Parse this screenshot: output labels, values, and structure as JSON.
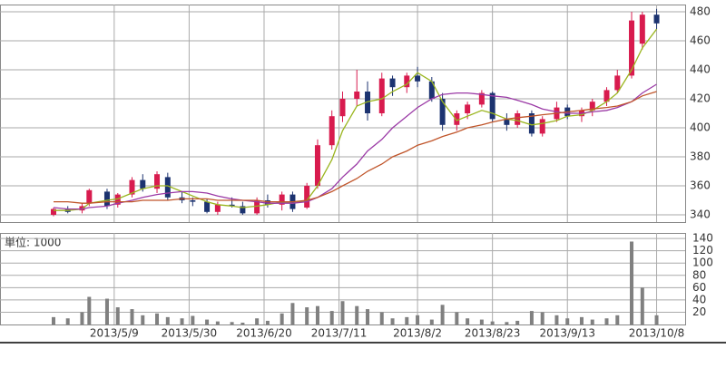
{
  "chart_data": {
    "type": "candlestick",
    "x": [
      "2013/4/22",
      "2013/4/26",
      "2013/4/30",
      "2013/5/2",
      "2013/5/7",
      "2013/5/10",
      "2013/5/14",
      "2013/5/17",
      "2013/5/21",
      "2013/5/24",
      "2013/5/28",
      "2013/5/31",
      "2013/6/4",
      "2013/6/7",
      "2013/6/11",
      "2013/6/14",
      "2013/6/18",
      "2013/6/21",
      "2013/6/25",
      "2013/6/28",
      "2013/7/2",
      "2013/7/5",
      "2013/7/9",
      "2013/7/12",
      "2013/7/16",
      "2013/7/19",
      "2013/7/23",
      "2013/7/26",
      "2013/7/30",
      "2013/8/2",
      "2013/8/6",
      "2013/8/9",
      "2013/8/13",
      "2013/8/16",
      "2013/8/20",
      "2013/8/23",
      "2013/8/27",
      "2013/8/30",
      "2013/9/3",
      "2013/9/6",
      "2013/9/10",
      "2013/9/13",
      "2013/9/17",
      "2013/9/20",
      "2013/9/24",
      "2013/9/27",
      "2013/10/1",
      "2013/10/4",
      "2013/10/8"
    ],
    "open": [
      340,
      344,
      343,
      348,
      356,
      347,
      354,
      364,
      358,
      366,
      352,
      350,
      349,
      342,
      347,
      346,
      341,
      350,
      347,
      354,
      345,
      360,
      388,
      408,
      420,
      425,
      410,
      434,
      428,
      436,
      432,
      420,
      402,
      410,
      416,
      424,
      406,
      402,
      410,
      396,
      406,
      414,
      408,
      412,
      418,
      426,
      436,
      458,
      478
    ],
    "high": [
      345,
      346,
      348,
      358,
      358,
      355,
      366,
      368,
      370,
      369,
      356,
      352,
      351,
      349,
      352,
      349,
      352,
      354,
      356,
      356,
      362,
      392,
      412,
      425,
      440,
      432,
      438,
      436,
      438,
      442,
      435,
      424,
      412,
      418,
      426,
      425,
      410,
      412,
      412,
      408,
      418,
      416,
      414,
      420,
      428,
      440,
      480,
      480,
      482
    ],
    "low": [
      339,
      341,
      341,
      346,
      344,
      345,
      352,
      356,
      355,
      350,
      348,
      346,
      341,
      340,
      345,
      340,
      340,
      345,
      343,
      342,
      344,
      358,
      385,
      404,
      415,
      405,
      408,
      422,
      424,
      428,
      418,
      398,
      398,
      406,
      414,
      404,
      398,
      400,
      394,
      394,
      404,
      406,
      404,
      408,
      415,
      424,
      434,
      454,
      468
    ],
    "close": [
      344,
      342,
      346,
      357,
      346,
      354,
      364,
      358,
      368,
      352,
      350,
      349,
      342,
      347,
      346,
      341,
      350,
      347,
      354,
      344,
      360,
      388,
      408,
      420,
      425,
      410,
      434,
      428,
      436,
      432,
      420,
      402,
      410,
      416,
      424,
      406,
      402,
      410,
      396,
      406,
      414,
      408,
      412,
      418,
      426,
      436,
      474,
      478,
      472
    ],
    "up_color": "#d81b4e",
    "down_color": "#1c3370",
    "moving_averages": [
      {
        "color": "#9ab51e",
        "values": [
          343,
          343,
          344,
          348,
          350,
          351,
          355,
          358,
          360,
          360,
          356,
          353,
          349,
          347,
          346,
          345,
          346,
          347,
          349,
          348,
          350,
          360,
          378,
          398,
          415,
          418,
          420,
          425,
          430,
          438,
          432,
          418,
          405,
          408,
          412,
          410,
          406,
          405,
          402,
          403,
          405,
          408,
          409,
          412,
          418,
          424,
          440,
          455,
          468
        ]
      },
      {
        "color": "#9b3aa6",
        "values": [
          345,
          344,
          344,
          345,
          346,
          348,
          350,
          352,
          354,
          355,
          356,
          356,
          355,
          353,
          351,
          350,
          349,
          348,
          348,
          348,
          349,
          352,
          358,
          366,
          375,
          384,
          392,
          400,
          408,
          414,
          420,
          423,
          424,
          424,
          423,
          422,
          421,
          419,
          416,
          413,
          411,
          410,
          410,
          411,
          412,
          414,
          418,
          424,
          430
        ]
      },
      {
        "color": "#c0552a",
        "values": [
          349,
          349,
          348,
          348,
          349,
          349,
          349,
          350,
          350,
          350,
          351,
          351,
          351,
          350,
          350,
          350,
          350,
          349,
          349,
          349,
          350,
          352,
          356,
          360,
          365,
          370,
          375,
          380,
          384,
          388,
          391,
          394,
          397,
          400,
          402,
          404,
          406,
          407,
          408,
          409,
          410,
          411,
          412,
          413,
          414,
          415,
          418,
          422,
          425
        ]
      }
    ],
    "ylim": [
      335,
      485
    ],
    "yticks": [
      340,
      360,
      380,
      400,
      420,
      440,
      460,
      480
    ],
    "xlim": [
      "2013/4/7",
      "2013/10/16"
    ],
    "xticks": [
      "2013/5/9",
      "2013/5/30",
      "2013/6/20",
      "2013/7/11",
      "2013/8/2",
      "2013/8/23",
      "2013/9/13",
      "2013/10/8"
    ],
    "grid": true,
    "volume": {
      "label": "単位: 1000",
      "color": "#808080",
      "values": [
        12,
        10,
        20,
        45,
        42,
        28,
        25,
        15,
        18,
        12,
        10,
        14,
        8,
        5,
        4,
        3,
        10,
        6,
        18,
        35,
        28,
        30,
        22,
        38,
        30,
        25,
        20,
        10,
        12,
        15,
        8,
        32,
        20,
        10,
        8,
        5,
        4,
        6,
        22,
        20,
        15,
        10,
        12,
        8,
        10,
        15,
        135,
        60,
        15
      ],
      "ylim": [
        0,
        149
      ],
      "yticks": [
        20,
        40,
        60,
        80,
        100,
        120,
        140
      ]
    }
  }
}
